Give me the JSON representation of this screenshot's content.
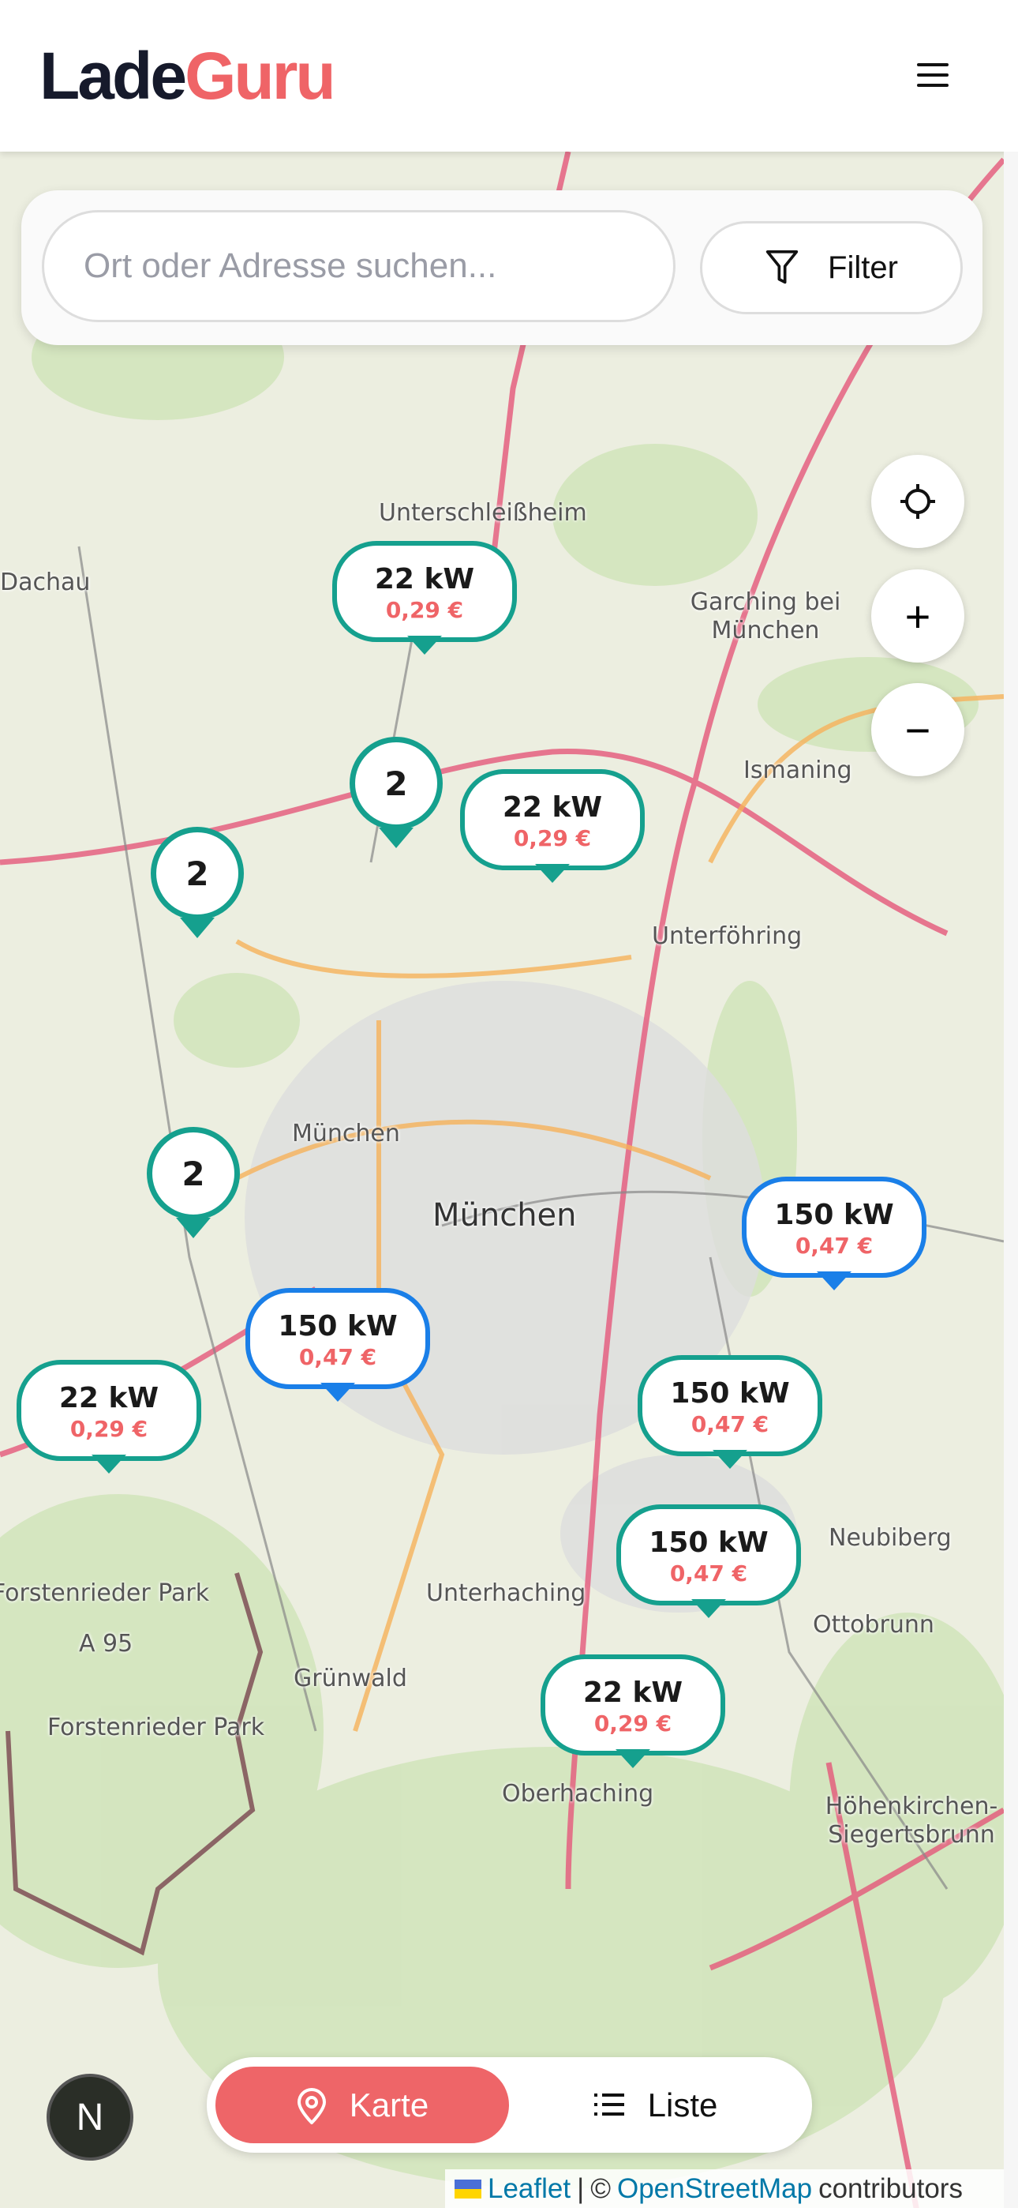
{
  "header": {
    "logo_part1": "Lade",
    "logo_part2": "Guru",
    "menu_icon": "hamburger-icon"
  },
  "search": {
    "placeholder": "Ort oder Adresse suchen...",
    "value": "",
    "filter_label": "Filter",
    "filter_icon": "funnel-icon"
  },
  "map_controls": {
    "locate_icon": "crosshair-icon",
    "zoom_in": "+",
    "zoom_out": "−"
  },
  "map_labels": [
    "Unterschleißheim",
    "Garching bei München",
    "Ismaning",
    "Unterföhring",
    "München",
    "München",
    "Grünwald",
    "Oberhaching",
    "Forstenrieder Park",
    "Forstenrieder Park",
    "A 95",
    "Dachau",
    "Unterhaching",
    "Ottobrunn",
    "Neubiberg",
    "Höhenkirchen-Siegertsbrunn"
  ],
  "markers": [
    {
      "power": "22 kW",
      "price": "0,29 €",
      "color": "#15a08e"
    },
    {
      "power": "22 kW",
      "price": "0,29 €",
      "color": "#15a08e"
    },
    {
      "power": "150 kW",
      "price": "0,47 €",
      "color": "#1a7fe8"
    },
    {
      "power": "150 kW",
      "price": "0,47 €",
      "color": "#1a7fe8"
    },
    {
      "power": "22 kW",
      "price": "0,29 €",
      "color": "#15a08e"
    },
    {
      "power": "150 kW",
      "price": "0,47 €",
      "color": "#15a08e"
    },
    {
      "power": "150 kW",
      "price": "0,47 €",
      "color": "#15a08e"
    },
    {
      "power": "22 kW",
      "price": "0,29 €",
      "color": "#15a08e"
    }
  ],
  "clusters": [
    {
      "count": "2"
    },
    {
      "count": "2"
    },
    {
      "count": "2"
    }
  ],
  "view_toggle": {
    "map_label": "Karte",
    "map_icon": "map-pin-icon",
    "list_label": "Liste",
    "list_icon": "list-icon",
    "active": "Karte"
  },
  "corner_button": {
    "label": "N"
  },
  "attribution": {
    "leaflet": "Leaflet",
    "separator": "|",
    "copyright": "©",
    "osm": "OpenStreetMap",
    "contributors": "contributors"
  },
  "colors": {
    "brand": "#ef6467",
    "teal": "#15a08e",
    "blue": "#1a7fe8",
    "logo_dark": "#161a2b"
  }
}
